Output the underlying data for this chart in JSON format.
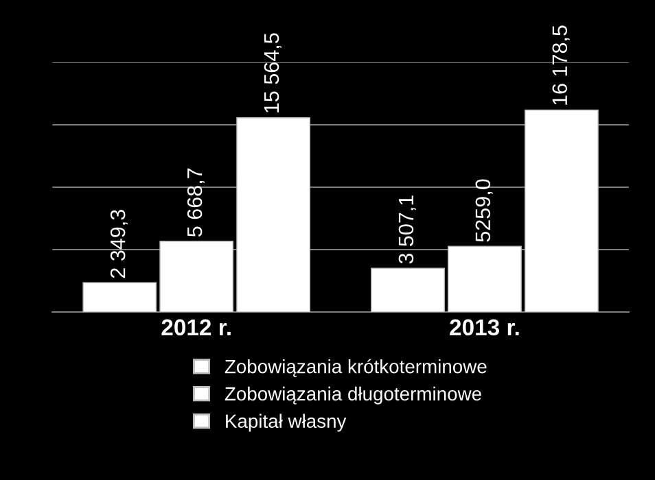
{
  "chart_data": {
    "type": "bar",
    "categories": [
      "2012 r.",
      "2013 r."
    ],
    "series": [
      {
        "name": "Zobowiązania krótkoterminowe",
        "color": "#ffffff",
        "values": [
          2349.3,
          3507.1
        ],
        "value_labels": [
          "2 349,3",
          "3 507,1"
        ]
      },
      {
        "name": "Zobowiązania długoterminowe",
        "color": "#ffffff",
        "values": [
          5668.7,
          5259.0
        ],
        "value_labels": [
          "5 668,7",
          "5259,0"
        ]
      },
      {
        "name": "Kapitał własny",
        "color": "#ffffff",
        "values": [
          15564.5,
          16178.5
        ],
        "value_labels": [
          "15 564,5",
          "16 178,5"
        ]
      }
    ],
    "ylim": [
      0,
      20000
    ],
    "yticks": [
      {
        "value": 0,
        "label": null
      },
      {
        "value": 5000,
        "label": null
      },
      {
        "value": 10000,
        "label": null
      },
      {
        "value": 15000,
        "label": null
      },
      {
        "value": 20000,
        "label": null
      }
    ],
    "grid": "y",
    "tick_labels": "x",
    "legend": "bottom"
  }
}
